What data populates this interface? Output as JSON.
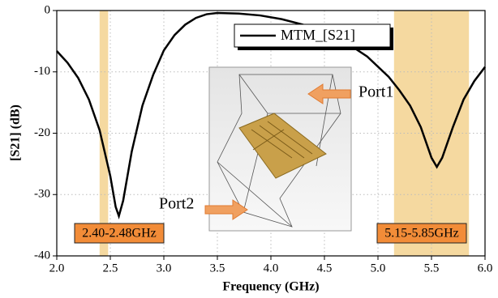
{
  "chart_data": {
    "type": "line",
    "xlabel": "Frequency (GHz)",
    "ylabel": "[S21] (dB)",
    "xlim": [
      2.0,
      6.0
    ],
    "ylim": [
      -40,
      0
    ],
    "xticks": [
      {
        "value": 2.0,
        "label": "2.0"
      },
      2.5,
      {
        "value": 3.0,
        "label": "3.0"
      },
      3.5,
      {
        "value": 4.0,
        "label": "4.0"
      },
      4.5,
      {
        "value": 5.0,
        "label": "5.0"
      },
      5.5,
      {
        "value": 6.0,
        "label": "6.0"
      }
    ],
    "yticks": [
      0,
      -10,
      -20,
      -30,
      -40
    ],
    "grid": true,
    "x": [
      2.0,
      2.1,
      2.2,
      2.3,
      2.4,
      2.5,
      2.55,
      2.58,
      2.62,
      2.7,
      2.8,
      2.9,
      3.0,
      3.1,
      3.2,
      3.3,
      3.4,
      3.5,
      3.7,
      3.9,
      4.1,
      4.3,
      4.5,
      4.7,
      4.9,
      5.1,
      5.2,
      5.3,
      5.4,
      5.5,
      5.55,
      5.6,
      5.7,
      5.8,
      5.9,
      6.0
    ],
    "series": [
      {
        "name": "MTM_[S21]",
        "color": "#000000",
        "values": [
          -6.6,
          -8.5,
          -11,
          -14.5,
          -19.5,
          -27,
          -32,
          -33.5,
          -31,
          -23,
          -15.5,
          -10.5,
          -6.5,
          -4,
          -2.3,
          -1.2,
          -0.6,
          -0.4,
          -0.5,
          -0.8,
          -1.4,
          -2.3,
          -3.6,
          -5.2,
          -7.5,
          -10.8,
          -13,
          -15.5,
          -19,
          -24,
          -25.5,
          -24,
          -19,
          -14.5,
          -11.5,
          -9.2
        ]
      }
    ],
    "bands": [
      {
        "range": [
          2.4,
          2.48
        ],
        "label": "2.40-2.48GHz",
        "color": "#f5d9a0"
      },
      {
        "range": [
          5.15,
          5.85
        ],
        "label": "5.15-5.85GHz",
        "color": "#f5d9a0"
      }
    ],
    "annotations": [
      "Port1",
      "Port2"
    ]
  }
}
